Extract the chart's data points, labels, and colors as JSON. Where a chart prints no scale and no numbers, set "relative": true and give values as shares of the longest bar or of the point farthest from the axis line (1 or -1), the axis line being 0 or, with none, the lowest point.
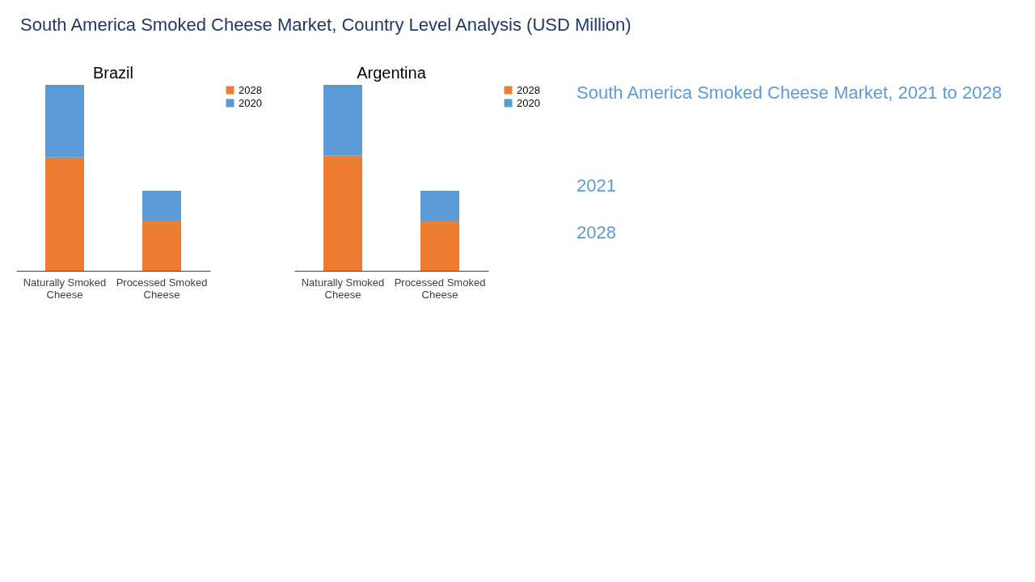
{
  "chart_data": [
    {
      "type": "other",
      "title": "South America Smoked Cheese Market, Country Level Analysis (USD Million)"
    },
    {
      "type": "bar",
      "title": "Brazil",
      "categories": [
        "Naturally Smoked Cheese",
        "Processed Smoked Cheese"
      ],
      "stacked": true,
      "relative": true,
      "legend": "right",
      "grid": false,
      "series": [
        {
          "name": "2028",
          "color": "#ed7d31",
          "values": [
            0.61,
            0.27
          ]
        },
        {
          "name": "2020",
          "color": "#5b9bd5",
          "values": [
            0.39,
            0.16
          ]
        }
      ]
    },
    {
      "type": "bar",
      "title": "Argentina",
      "categories": [
        "Naturally Smoked Cheese",
        "Processed Smoked Cheese"
      ],
      "stacked": true,
      "relative": true,
      "legend": "right",
      "grid": false,
      "series": [
        {
          "name": "2028",
          "color": "#ed7d31",
          "values": [
            0.62,
            0.27
          ]
        },
        {
          "name": "2020",
          "color": "#5b9bd5",
          "values": [
            0.38,
            0.16
          ]
        }
      ]
    },
    {
      "type": "other",
      "title": "South America Smoked Cheese Market, 2021 to 2028",
      "annotations": [
        "2021",
        "2028"
      ]
    }
  ]
}
